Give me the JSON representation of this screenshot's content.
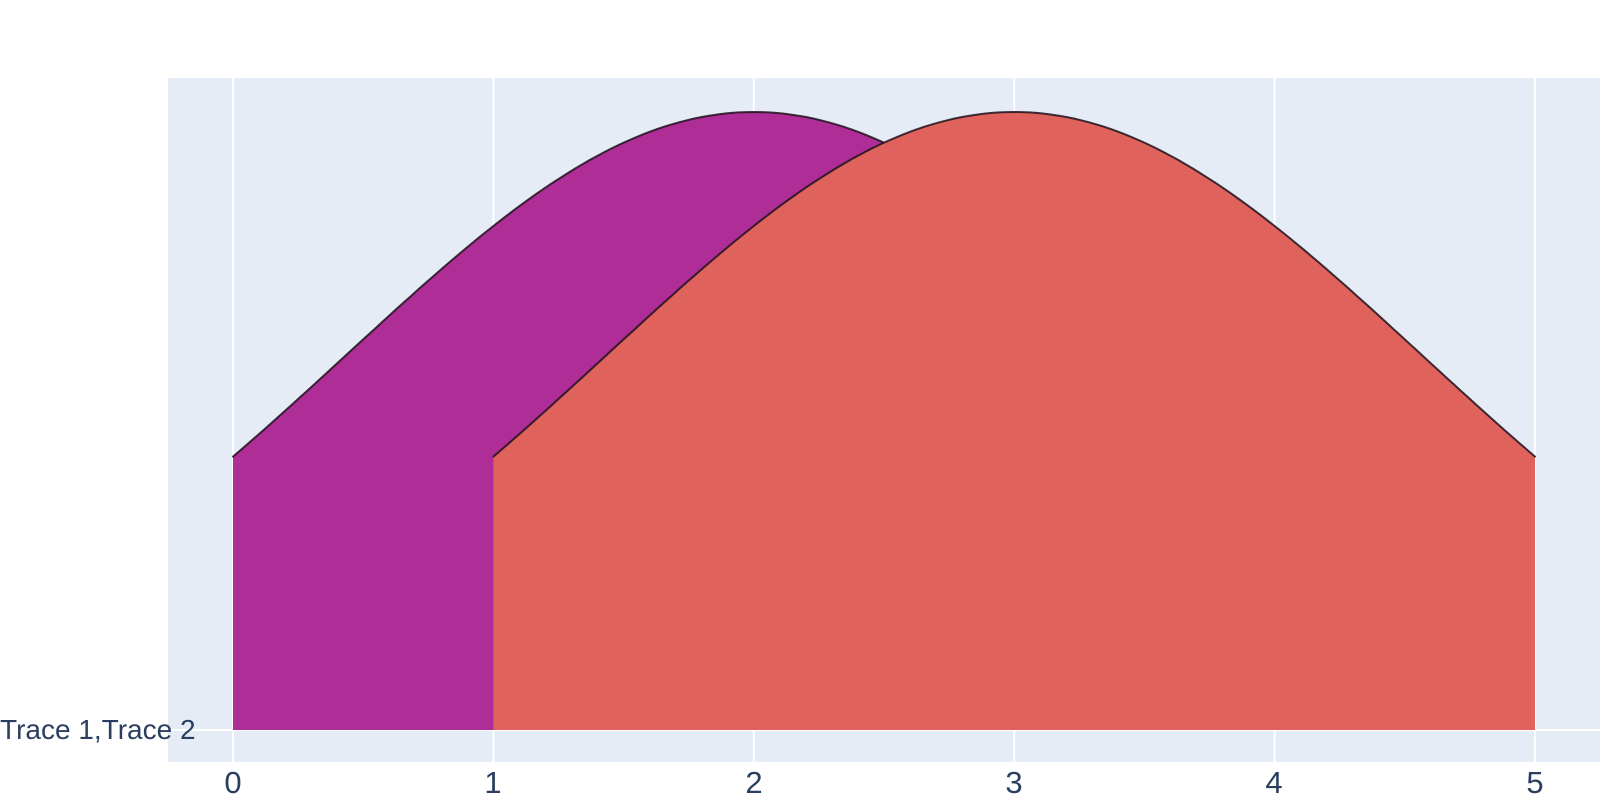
{
  "figure": {
    "background_color": "#FFFFFF",
    "plot_background_color": "#E5ECF6",
    "grid_color": "#FFFFFF",
    "text_color": "#2A3F5F"
  },
  "chart_data": {
    "type": "area",
    "subtype": "one-sided-violin-kde-overlay",
    "orientation": "horizontal",
    "title": "",
    "xlabel": "",
    "ylabel": "",
    "legend_position": "none",
    "grid": true,
    "y_category_label": "Trace 1,Trace 2",
    "x_ticks": [
      "0",
      "1",
      "2",
      "3",
      "4",
      "5"
    ],
    "x_axis_range": [
      -0.25,
      5.25
    ],
    "outline_color": "rgba(30,18,28,0.85)",
    "traces": [
      {
        "name": "Trace 1",
        "fill_color": "#AE2D96",
        "x_min": 0,
        "x_max": 4,
        "peak_x": 2,
        "sigma": 1.566,
        "peak_rel_height": 1.0,
        "endpoint_rel_height": 0.44,
        "curve_points_x": [
          0,
          0.5,
          1,
          1.5,
          2,
          2.5,
          3,
          3.5,
          4
        ],
        "curve_points_rel_height": [
          0.44,
          0.63,
          0.82,
          0.95,
          1.0,
          0.95,
          0.82,
          0.63,
          0.44
        ]
      },
      {
        "name": "Trace 2",
        "fill_color": "#E0625C",
        "x_min": 1,
        "x_max": 5,
        "peak_x": 3,
        "sigma": 1.566,
        "peak_rel_height": 1.0,
        "endpoint_rel_height": 0.44,
        "curve_points_x": [
          1,
          1.5,
          2,
          2.5,
          3,
          3.5,
          4,
          4.5,
          5
        ],
        "curve_points_rel_height": [
          0.44,
          0.63,
          0.82,
          0.95,
          1.0,
          0.95,
          0.82,
          0.63,
          0.44
        ]
      }
    ]
  }
}
